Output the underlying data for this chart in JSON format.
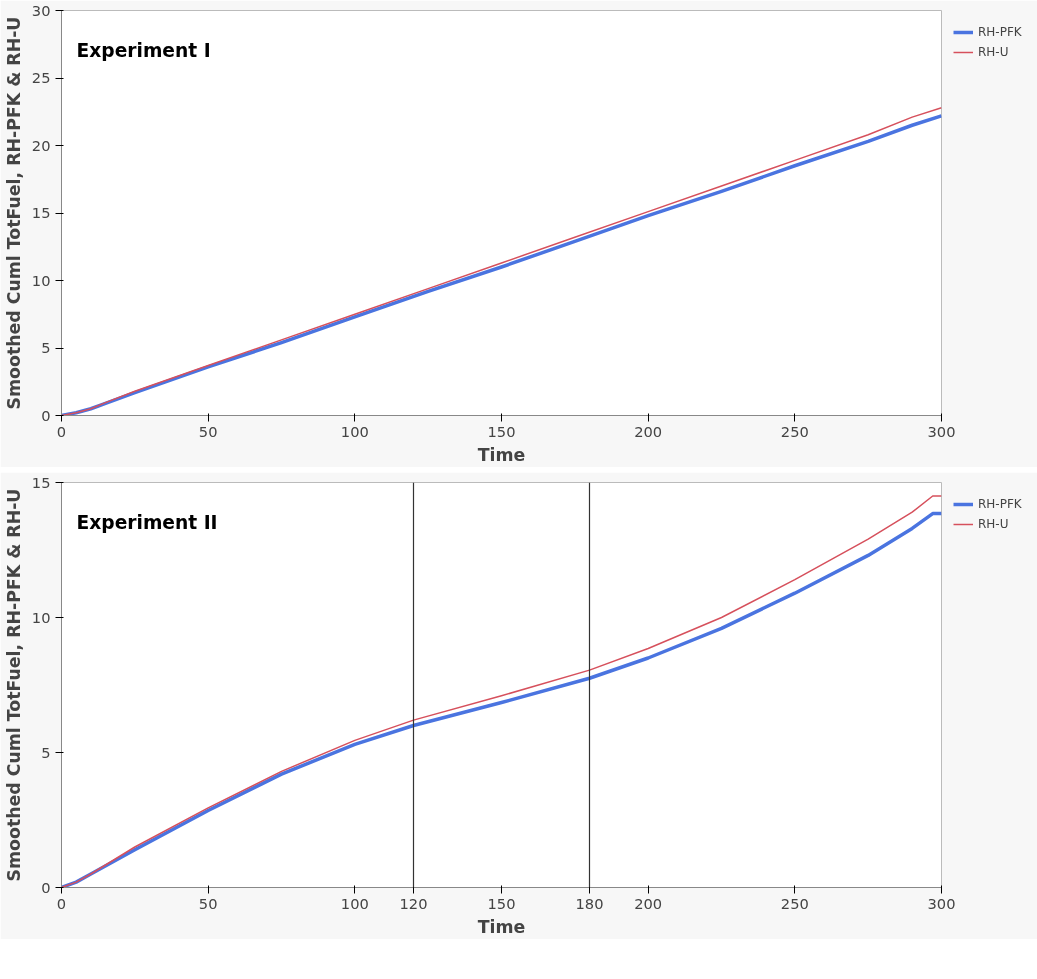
{
  "chart_data": [
    {
      "type": "line",
      "title": "Experiment I",
      "xlabel": "Time",
      "ylabel": "Smoothed Cuml TotFuel, RH-PFK & RH-U",
      "x": [
        0,
        5,
        10,
        15,
        25,
        50,
        75,
        100,
        125,
        150,
        175,
        200,
        225,
        250,
        275,
        290,
        300
      ],
      "series": [
        {
          "name": "RH-PFK",
          "color": "#4a74e0",
          "values": [
            0,
            0.2,
            0.5,
            0.9,
            1.7,
            3.6,
            5.4,
            7.3,
            9.2,
            11.0,
            12.9,
            14.8,
            16.6,
            18.5,
            20.3,
            21.5,
            22.2
          ]
        },
        {
          "name": "RH-U",
          "color": "#d6505c",
          "values": [
            0,
            0.2,
            0.5,
            0.95,
            1.8,
            3.7,
            5.6,
            7.5,
            9.4,
            11.3,
            13.2,
            15.1,
            17.0,
            18.9,
            20.8,
            22.1,
            22.8
          ]
        }
      ],
      "xlim": [
        0,
        300
      ],
      "ylim": [
        0,
        30
      ],
      "xticks": [
        0,
        50,
        100,
        150,
        200,
        250,
        300
      ],
      "yticks": [
        0,
        5,
        10,
        15,
        20,
        25,
        30
      ],
      "grid": false,
      "legend": "right",
      "line_style": "solid",
      "marker": "none"
    },
    {
      "type": "line",
      "title": "Experiment II",
      "xlabel": "Time",
      "ylabel": "Smoothed Cuml TotFuel, RH-PFK & RH-U",
      "x": [
        0,
        5,
        10,
        25,
        50,
        75,
        100,
        120,
        150,
        180,
        200,
        225,
        250,
        275,
        290,
        297,
        300
      ],
      "series": [
        {
          "name": "RH-PFK",
          "color": "#4a74e0",
          "values": [
            0,
            0.2,
            0.5,
            1.4,
            2.85,
            4.2,
            5.3,
            6.0,
            6.85,
            7.75,
            8.5,
            9.6,
            10.9,
            12.3,
            13.3,
            13.85,
            13.85
          ]
        },
        {
          "name": "RH-U",
          "color": "#d6505c",
          "values": [
            0,
            0.2,
            0.5,
            1.5,
            2.95,
            4.3,
            5.45,
            6.2,
            7.1,
            8.05,
            8.85,
            10.0,
            11.4,
            12.9,
            13.9,
            14.5,
            14.5
          ]
        }
      ],
      "xlim": [
        0,
        300
      ],
      "ylim": [
        0,
        15
      ],
      "xticks": [
        0,
        50,
        100,
        120,
        150,
        180,
        200,
        250,
        300
      ],
      "yticks": [
        0,
        5,
        10,
        15
      ],
      "ref_lines": [
        {
          "axis": "x",
          "value": 120,
          "color": "#333333"
        },
        {
          "axis": "x",
          "value": 180,
          "color": "#333333"
        }
      ],
      "grid": false,
      "legend": "right",
      "line_style": "solid",
      "marker": "none"
    }
  ]
}
